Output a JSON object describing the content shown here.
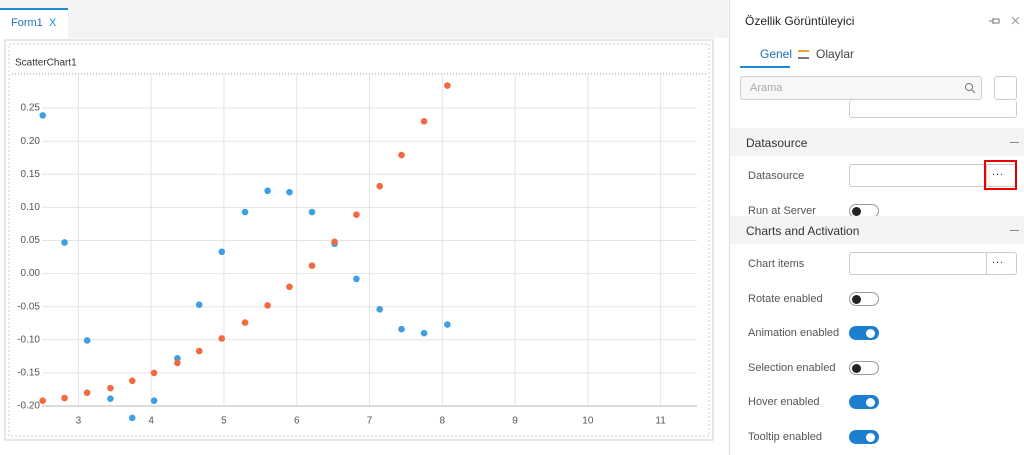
{
  "tab": {
    "title": "Form1",
    "close": "X"
  },
  "chart_data": {
    "type": "scatter",
    "title": "ScatterChart1",
    "series": [
      {
        "color": "#3d9fe6",
        "x": [
          2.51,
          2.81,
          3.12,
          3.44,
          3.74,
          4.04,
          4.36,
          4.66,
          4.97,
          5.29,
          5.6,
          5.9,
          6.21,
          6.52,
          6.82,
          7.14,
          7.44,
          7.75,
          8.07
        ],
        "values": [
          0.239,
          0.047,
          -0.101,
          -0.189,
          -0.218,
          -0.192,
          -0.128,
          -0.047,
          0.033,
          0.093,
          0.125,
          0.123,
          0.093,
          0.045,
          -0.008,
          -0.054,
          -0.084,
          -0.09,
          -0.077
        ]
      },
      {
        "color": "#f26a3d",
        "x": [
          2.51,
          2.81,
          3.12,
          3.44,
          3.74,
          4.04,
          4.36,
          4.66,
          4.97,
          5.29,
          5.6,
          5.9,
          6.21,
          6.52,
          6.82,
          7.14,
          7.44,
          7.75,
          8.07
        ],
        "values": [
          -0.192,
          -0.188,
          -0.18,
          -0.173,
          -0.162,
          -0.15,
          -0.135,
          -0.117,
          -0.098,
          -0.074,
          -0.048,
          -0.02,
          0.012,
          0.048,
          0.089,
          0.132,
          0.179,
          0.23,
          0.284
        ]
      }
    ],
    "xlim": [
      2.5,
      11.5
    ],
    "xticks": [
      3,
      4,
      5,
      6,
      7,
      8,
      9,
      10,
      11
    ],
    "ylim": [
      -0.2,
      0.3
    ],
    "yticks": [
      {
        "value": 0.25,
        "label": "0.25"
      },
      {
        "value": 0.2,
        "label": "0.20"
      },
      {
        "value": 0.15,
        "label": "0.15"
      },
      {
        "value": 0.1,
        "label": "0.10"
      },
      {
        "value": 0.05,
        "label": "0.05"
      },
      {
        "value": 0,
        "label": "0.00"
      },
      {
        "value": -0.05,
        "label": "-0.05"
      },
      {
        "value": -0.1,
        "label": "-0.10"
      },
      {
        "value": -0.15,
        "label": "-0.15"
      },
      {
        "value": -0.2,
        "label": "-0.20"
      }
    ],
    "grid": true
  },
  "panel": {
    "title": "Özellik Görüntüleyici",
    "tabs": [
      "Genel",
      "Olaylar"
    ],
    "search_placeholder": "Arama",
    "sections": [
      {
        "title": "Datasource",
        "rows": [
          {
            "label": "Datasource",
            "button": "..."
          },
          {
            "label": "Run at Server",
            "toggle": false
          }
        ]
      },
      {
        "title": "Charts and Activation",
        "rows": [
          {
            "label": "Chart items",
            "button": "..."
          },
          {
            "label": "Rotate enabled",
            "toggle": false
          },
          {
            "label": "Animation enabled",
            "toggle": true
          },
          {
            "label": "Selection enabled",
            "toggle": false
          },
          {
            "label": "Hover enabled",
            "toggle": true
          },
          {
            "label": "Tooltip enabled",
            "toggle": true
          }
        ]
      }
    ]
  }
}
